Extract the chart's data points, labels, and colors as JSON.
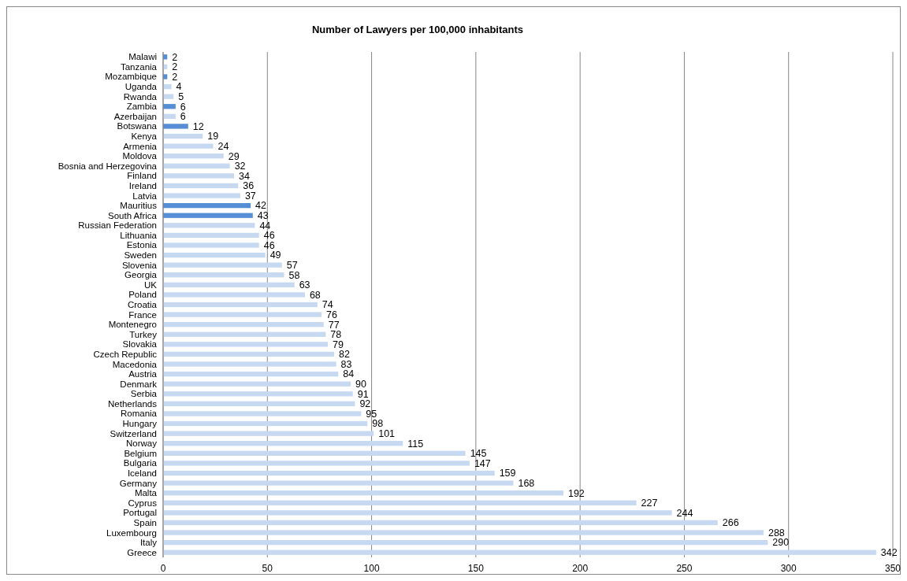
{
  "chart_data": {
    "type": "bar",
    "orientation": "horizontal",
    "title": "Number of Lawyers per 100,000 inhabitants",
    "categories": [
      "Malawi",
      "Tanzania",
      "Mozambique",
      "Uganda",
      "Rwanda",
      "Zambia",
      "Azerbaijan",
      "Botswana",
      "Kenya",
      "Armenia",
      "Moldova",
      "Bosnia and Herzegovina",
      "Finland",
      "Ireland",
      "Latvia",
      "Mauritius",
      "South Africa",
      "Russian Federation",
      "Lithuania",
      "Estonia",
      "Sweden",
      "Slovenia",
      "Georgia",
      "UK",
      "Poland",
      "Croatia",
      "France",
      "Montenegro",
      "Turkey",
      "Slovakia",
      "Czech Republic",
      "Macedonia",
      "Austria",
      "Denmark",
      "Serbia",
      "Netherlands",
      "Romania",
      "Hungary",
      "Switzerland",
      "Norway",
      "Belgium",
      "Bulgaria",
      "Iceland",
      "Germany",
      "Malta",
      "Cyprus",
      "Portugal",
      "Spain",
      "Luxembourg",
      "Italy",
      "Greece"
    ],
    "values": [
      2,
      2,
      2,
      4,
      5,
      6,
      6,
      12,
      19,
      24,
      29,
      32,
      34,
      36,
      37,
      42,
      43,
      44,
      46,
      46,
      49,
      57,
      58,
      63,
      68,
      74,
      76,
      77,
      78,
      79,
      82,
      83,
      84,
      90,
      91,
      92,
      95,
      98,
      101,
      115,
      145,
      147,
      159,
      168,
      192,
      227,
      244,
      266,
      288,
      290,
      342
    ],
    "colors": [
      "#558ed5",
      "#c6d9f1",
      "#558ed5",
      "#c6d9f1",
      "#c6d9f1",
      "#558ed5",
      "#c6d9f1",
      "#558ed5",
      "#c6d9f1",
      "#c6d9f1",
      "#c6d9f1",
      "#c6d9f1",
      "#c6d9f1",
      "#c6d9f1",
      "#c6d9f1",
      "#558ed5",
      "#558ed5",
      "#c6d9f1",
      "#c6d9f1",
      "#c6d9f1",
      "#c6d9f1",
      "#c6d9f1",
      "#c6d9f1",
      "#c6d9f1",
      "#c6d9f1",
      "#c6d9f1",
      "#c6d9f1",
      "#c6d9f1",
      "#c6d9f1",
      "#c6d9f1",
      "#c6d9f1",
      "#c6d9f1",
      "#c6d9f1",
      "#c6d9f1",
      "#c6d9f1",
      "#c6d9f1",
      "#c6d9f1",
      "#c6d9f1",
      "#c6d9f1",
      "#c6d9f1",
      "#c6d9f1",
      "#c6d9f1",
      "#c6d9f1",
      "#c6d9f1",
      "#c6d9f1",
      "#c6d9f1",
      "#c6d9f1",
      "#c6d9f1",
      "#c6d9f1",
      "#c6d9f1",
      "#c6d9f1"
    ],
    "xlim": [
      0,
      350
    ],
    "xticks": [
      0,
      50,
      100,
      150,
      200,
      250,
      300,
      350
    ],
    "grid": "x",
    "data_labels": true
  }
}
